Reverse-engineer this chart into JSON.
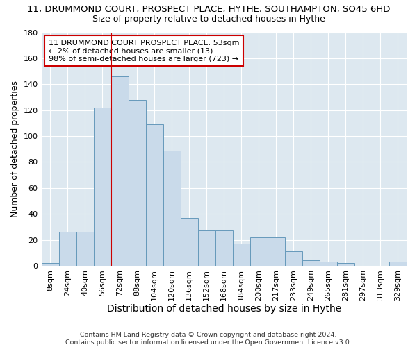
{
  "title": "11, DRUMMOND COURT, PROSPECT PLACE, HYTHE, SOUTHAMPTON, SO45 6HD",
  "subtitle": "Size of property relative to detached houses in Hythe",
  "xlabel": "Distribution of detached houses by size in Hythe",
  "ylabel": "Number of detached properties",
  "bar_color": "#c9daea",
  "bar_edgecolor": "#6699bb",
  "background_color": "#dde8f0",
  "grid_color": "#ffffff",
  "fig_facecolor": "#ffffff",
  "categories": [
    "8sqm",
    "24sqm",
    "40sqm",
    "56sqm",
    "72sqm",
    "88sqm",
    "104sqm",
    "120sqm",
    "136sqm",
    "152sqm",
    "168sqm",
    "184sqm",
    "200sqm",
    "217sqm",
    "233sqm",
    "249sqm",
    "265sqm",
    "281sqm",
    "297sqm",
    "313sqm",
    "329sqm"
  ],
  "values": [
    2,
    26,
    26,
    122,
    146,
    128,
    109,
    89,
    37,
    27,
    27,
    17,
    22,
    22,
    11,
    4,
    3,
    2,
    0,
    0,
    3
  ],
  "ylim": [
    0,
    180
  ],
  "yticks": [
    0,
    20,
    40,
    60,
    80,
    100,
    120,
    140,
    160,
    180
  ],
  "vline_x": 3.5,
  "vline_color": "#cc0000",
  "annotation_text": "11 DRUMMOND COURT PROSPECT PLACE: 53sqm\n← 2% of detached houses are smaller (13)\n98% of semi-detached houses are larger (723) →",
  "annotation_box_edgecolor": "#cc0000",
  "footer": "Contains HM Land Registry data © Crown copyright and database right 2024.\nContains public sector information licensed under the Open Government Licence v3.0.",
  "title_fontsize": 9.5,
  "subtitle_fontsize": 9,
  "ylabel_fontsize": 9,
  "xlabel_fontsize": 10,
  "tick_fontsize": 8,
  "annotation_fontsize": 8,
  "footer_fontsize": 6.8
}
